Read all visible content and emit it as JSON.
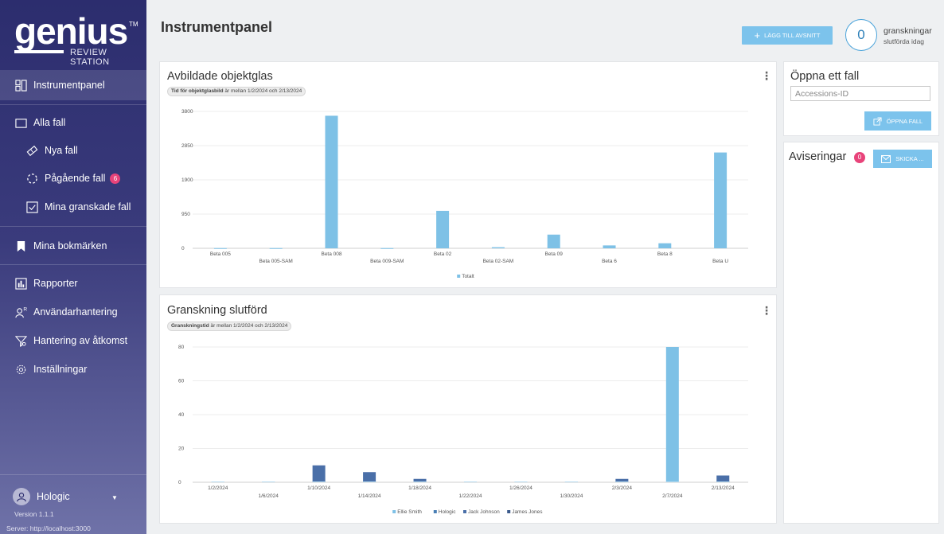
{
  "logo": {
    "word": "genius",
    "tm": "TM",
    "sub": "REVIEW STATION"
  },
  "sidebar": {
    "items": [
      {
        "label": "Instrumentpanel",
        "icon": "dashboard-icon"
      },
      {
        "label": "Alla fall",
        "icon": "folder-icon"
      },
      {
        "label": "Nya fall",
        "icon": "slide-icon"
      },
      {
        "label": "Pågående fall",
        "icon": "progress-icon",
        "badge": "6"
      },
      {
        "label": "Mina granskade fall",
        "icon": "checkbox-icon"
      },
      {
        "label": "Mina bokmärken",
        "icon": "bookmark-icon"
      },
      {
        "label": "Rapporter",
        "icon": "report-icon"
      },
      {
        "label": "Användarhantering",
        "icon": "users-icon"
      },
      {
        "label": "Hantering av åtkomst",
        "icon": "access-icon"
      },
      {
        "label": "Inställningar",
        "icon": "gear-icon"
      }
    ],
    "user": "Hologic",
    "version": "Version 1.1.1",
    "server": "Server: http://localhost:3000"
  },
  "header": {
    "title": "Instrumentpanel",
    "add_button": "LÄGG TILL AVSNITT",
    "count": "0",
    "count_line1": "granskningar",
    "count_line2": "slutförda idag"
  },
  "chart1": {
    "title": "Avbildade objektglas",
    "filter_bold": "Tid för objektglasbild",
    "filter_rest": " är mellan 1/2/2024 och 2/13/2024"
  },
  "chart2": {
    "title": "Granskning slutförd",
    "filter_bold": "Granskningstid",
    "filter_rest": " är mellan 1/2/2024 och 2/13/2024"
  },
  "open_case": {
    "title": "Öppna ett fall",
    "placeholder": "Accessions-ID",
    "button": "ÖPPNA FALL"
  },
  "notifications": {
    "title": "Aviseringar",
    "count": "0",
    "button": "SKICKA ..."
  },
  "chart_data": [
    {
      "type": "bar",
      "title": "Avbildade objektglas",
      "categories": [
        "Beta 005",
        "Beta 005-SAM",
        "Beta 008",
        "Beta 009-SAM",
        "Beta 02",
        "Beta 02-SAM",
        "Beta 09",
        "Beta 6",
        "Beta 8",
        "Beta U"
      ],
      "series": [
        {
          "name": "Totalt",
          "values": [
            5,
            5,
            3680,
            5,
            1040,
            30,
            380,
            80,
            140,
            2660
          ],
          "color": "#7ec1e6"
        }
      ],
      "yticks": [
        "0",
        "950",
        "1900",
        "2850",
        "3800"
      ],
      "ylim": [
        0,
        3800
      ],
      "legend": "bottom",
      "grid": true
    },
    {
      "type": "bar",
      "title": "Granskning slutförd",
      "categories": [
        "1/2/2024",
        "1/6/2024",
        "1/10/2024",
        "1/14/2024",
        "1/18/2024",
        "1/22/2024",
        "1/26/2024",
        "1/30/2024",
        "2/3/2024",
        "2/7/2024",
        "2/13/2024"
      ],
      "series": [
        {
          "name": "Ellie Smith",
          "values": [
            0,
            0,
            0,
            0,
            0,
            0,
            0,
            0,
            0,
            80,
            0
          ],
          "color": "#7ec1e6"
        },
        {
          "name": "Hologic",
          "values": [
            0,
            0,
            0,
            0,
            0,
            0,
            0,
            0,
            0,
            0,
            0
          ],
          "color": "#4a7fb5"
        },
        {
          "name": "Jack Johnson",
          "values": [
            0,
            0,
            10,
            6,
            2,
            0,
            0,
            0,
            2,
            0,
            4
          ],
          "color": "#4a6fa8"
        },
        {
          "name": "James Jones",
          "values": [
            0,
            0,
            0,
            0,
            0,
            0,
            0,
            0,
            0,
            0,
            0
          ],
          "color": "#3b5a8c"
        }
      ],
      "yticks": [
        "0",
        "20",
        "40",
        "60",
        "80"
      ],
      "ylim": [
        0,
        80
      ],
      "legend": "bottom",
      "grid": true
    }
  ]
}
